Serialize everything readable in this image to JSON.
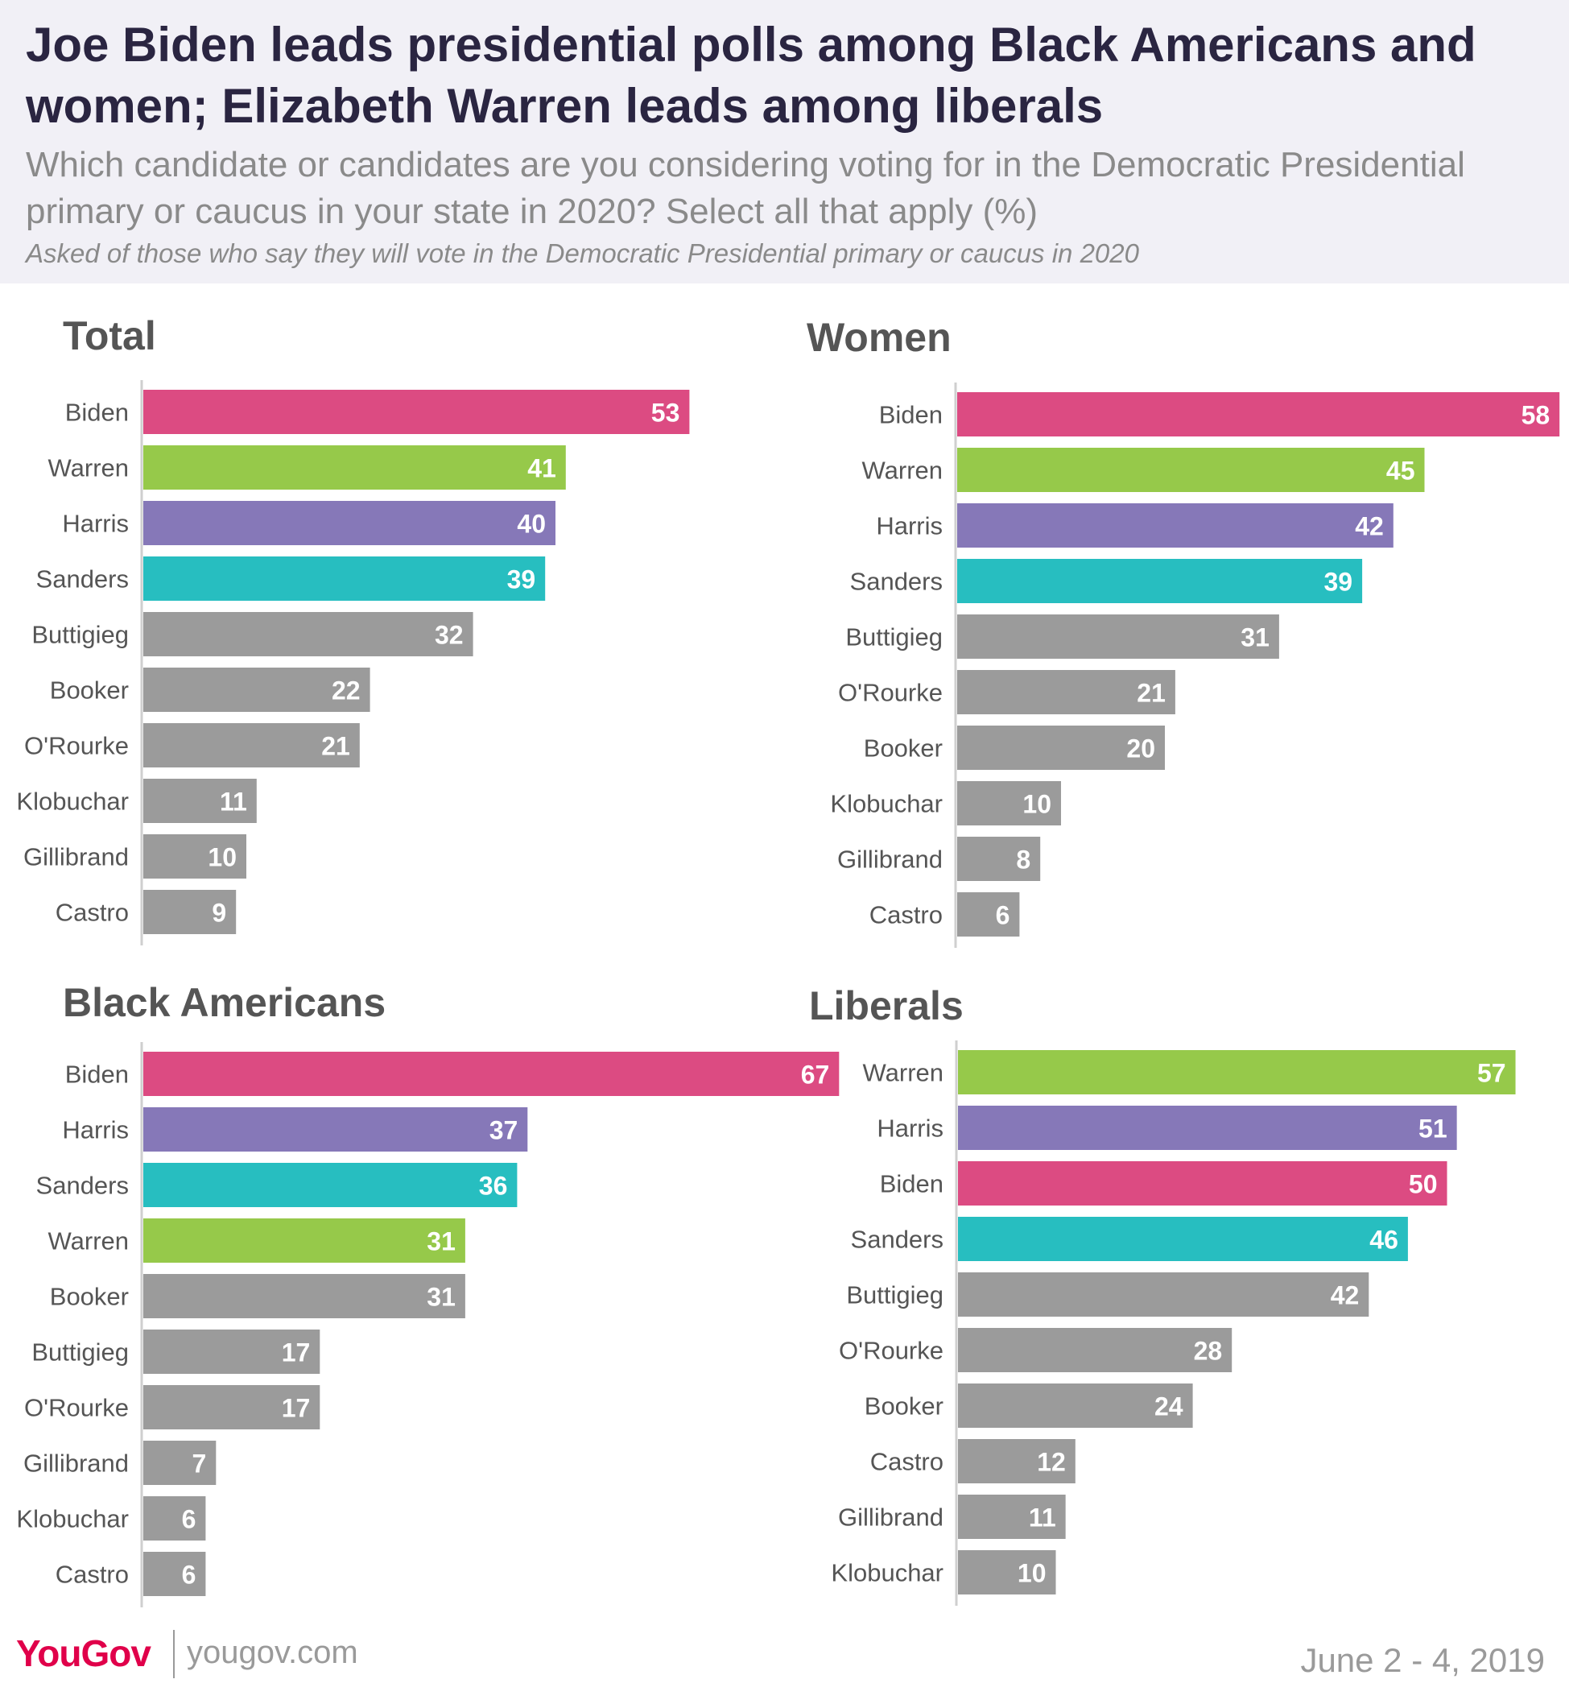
{
  "header": {
    "title": "Joe Biden leads presidential polls among Black Americans and women; Elizabeth Warren leads among liberals",
    "subtitle": "Which candidate or candidates are you considering voting for in the Democratic Presidential primary or caucus in your state in 2020? Select all that apply (%)",
    "note": "Asked of those who say they will vote in the Democratic Presidential primary or caucus in 2020"
  },
  "colors": {
    "Biden": "#dc4b82",
    "Warren": "#96c94a",
    "Harris": "#8678b8",
    "Sanders": "#27bec0",
    "other": "#9b9b9b",
    "axis": "#cfcfcf",
    "text": "#555555"
  },
  "footer": {
    "logo": "YouGov",
    "url": "yougov.com",
    "date": "June 2 - 4, 2019"
  },
  "chart_data": [
    {
      "type": "bar",
      "orientation": "horizontal",
      "title": "Total",
      "categories": [
        "Biden",
        "Warren",
        "Harris",
        "Sanders",
        "Buttigieg",
        "Booker",
        "O'Rourke",
        "Klobuchar",
        "Gillibrand",
        "Castro"
      ],
      "values": [
        53,
        41,
        40,
        39,
        32,
        22,
        21,
        11,
        10,
        9
      ]
    },
    {
      "type": "bar",
      "orientation": "horizontal",
      "title": "Women",
      "categories": [
        "Biden",
        "Warren",
        "Harris",
        "Sanders",
        "Buttigieg",
        "O'Rourke",
        "Booker",
        "Klobuchar",
        "Gillibrand",
        "Castro"
      ],
      "values": [
        58,
        45,
        42,
        39,
        31,
        21,
        20,
        10,
        8,
        6
      ]
    },
    {
      "type": "bar",
      "orientation": "horizontal",
      "title": "Black Americans",
      "categories": [
        "Biden",
        "Harris",
        "Sanders",
        "Warren",
        "Booker",
        "Buttigieg",
        "O'Rourke",
        "Gillibrand",
        "Klobuchar",
        "Castro"
      ],
      "values": [
        67,
        37,
        36,
        31,
        31,
        17,
        17,
        7,
        6,
        6
      ]
    },
    {
      "type": "bar",
      "orientation": "horizontal",
      "title": "Liberals",
      "categories": [
        "Warren",
        "Harris",
        "Biden",
        "Sanders",
        "Buttigieg",
        "O'Rourke",
        "Booker",
        "Castro",
        "Gillibrand",
        "Klobuchar"
      ],
      "values": [
        57,
        51,
        50,
        46,
        42,
        28,
        24,
        12,
        11,
        10
      ]
    }
  ]
}
